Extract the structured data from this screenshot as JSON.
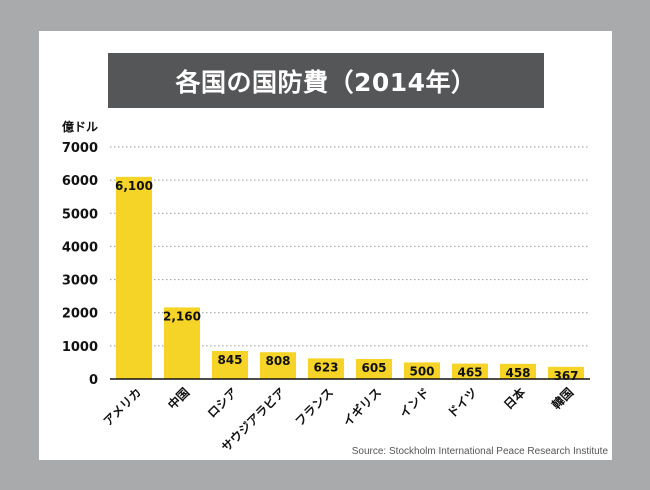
{
  "chart_data": {
    "type": "bar",
    "title": "各国の国防費（2014年）",
    "ylabel": "億ドル",
    "xlabel": "",
    "categories": [
      "アメリカ",
      "中国",
      "ロシア",
      "サウジアラビア",
      "フランス",
      "イギリス",
      "インド",
      "ドイツ",
      "日本",
      "韓国"
    ],
    "values": [
      6100,
      2160,
      845,
      808,
      623,
      605,
      500,
      465,
      458,
      367
    ],
    "data_labels": [
      "6,100",
      "2,160",
      "845",
      "808",
      "623",
      "605",
      "500",
      "465",
      "458",
      "367"
    ],
    "ylim": [
      0,
      7000
    ],
    "yticks": [
      0,
      1000,
      2000,
      3000,
      4000,
      5000,
      6000,
      7000
    ],
    "grid": true,
    "bar_color": "#f5d327",
    "source": "Source: Stockholm International Peace Research Institute"
  },
  "colors": {
    "background": "#a9aaac",
    "card": "#ffffff",
    "title_bar": "#545658",
    "bar": "#f5d327",
    "gridline": "#9a9a9a"
  }
}
